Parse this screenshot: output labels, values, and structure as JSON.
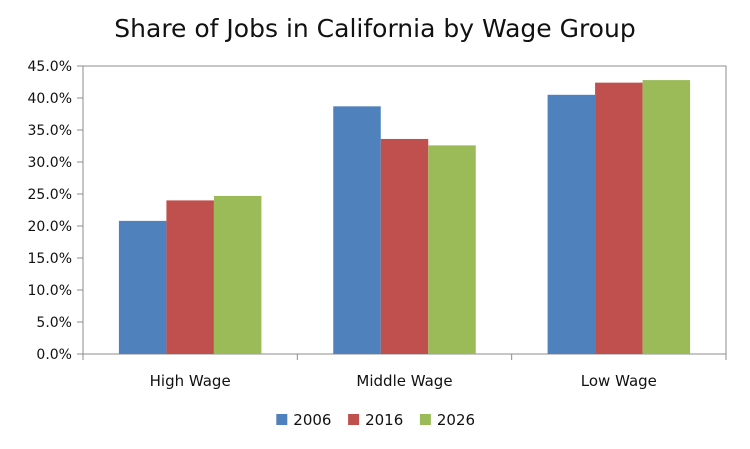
{
  "chart_data": {
    "type": "bar",
    "title": "Share of Jobs in California by Wage Group",
    "categories": [
      "High Wage",
      "Middle Wage",
      "Low Wage"
    ],
    "series": [
      {
        "name": "2006",
        "values": [
          20.8,
          38.7,
          40.5
        ],
        "color": "#4f81bd"
      },
      {
        "name": "2016",
        "values": [
          24.0,
          33.6,
          42.4
        ],
        "color": "#c0504d"
      },
      {
        "name": "2026",
        "values": [
          24.7,
          32.6,
          42.8
        ],
        "color": "#9bbb59"
      }
    ],
    "ylim": [
      0,
      45
    ],
    "yticks": [
      "0.0%",
      "5.0%",
      "10.0%",
      "15.0%",
      "20.0%",
      "25.0%",
      "30.0%",
      "35.0%",
      "40.0%",
      "45.0%"
    ],
    "xlabel": "",
    "ylabel": "",
    "grid": false,
    "legend_position": "bottom"
  }
}
